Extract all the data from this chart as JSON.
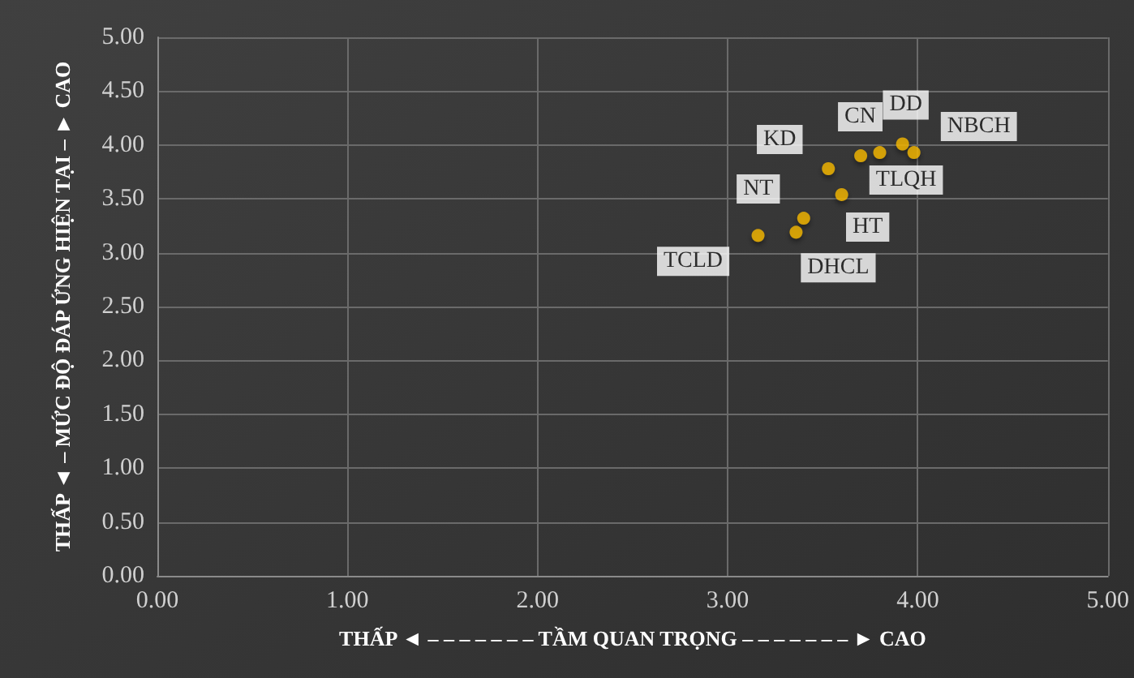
{
  "chart_data": {
    "type": "scatter",
    "xlabel": "THẤP ◄ – – – – – – – TẦM QUAN TRỌNG – – – – – – – ► CAO",
    "ylabel": "THẤP ◄ – MỨC ĐỘ ĐÁP ỨNG HIỆN TẠI – ► CAO",
    "series": [
      {
        "name": "DD",
        "color": "#f5b800",
        "x": [
          3.92
        ],
        "values": [
          4.01
        ]
      },
      {
        "name": "NBCH",
        "color": "#f5b800",
        "x": [
          3.98
        ],
        "values": [
          3.93
        ]
      },
      {
        "name": "CN",
        "color": "#f5b800",
        "x": [
          3.8
        ],
        "values": [
          3.93
        ]
      },
      {
        "name": "TLQH",
        "color": "#f5b800",
        "x": [
          3.7
        ],
        "values": [
          3.9
        ]
      },
      {
        "name": "KD",
        "color": "#f5b800",
        "x": [
          3.53
        ],
        "values": [
          3.78
        ]
      },
      {
        "name": "HT",
        "color": "#f5b800",
        "x": [
          3.6
        ],
        "values": [
          3.54
        ]
      },
      {
        "name": "NT",
        "color": "#f5b800",
        "x": [
          3.4
        ],
        "values": [
          3.32
        ]
      },
      {
        "name": "DHCL",
        "color": "#f5b800",
        "x": [
          3.36
        ],
        "values": [
          3.19
        ]
      },
      {
        "name": "TCLD",
        "color": "#f5b800",
        "x": [
          3.16
        ],
        "values": [
          3.16
        ]
      }
    ],
    "xlim": [
      0,
      5
    ],
    "xticks": [
      {
        "value": 0,
        "label": "0.00"
      },
      {
        "value": 1,
        "label": "1.00"
      },
      {
        "value": 2,
        "label": "2.00"
      },
      {
        "value": 3,
        "label": "3.00"
      },
      {
        "value": 4,
        "label": "4.00"
      },
      {
        "value": 5,
        "label": "5.00"
      }
    ],
    "ylim": [
      0,
      5
    ],
    "yticks": [
      {
        "value": 0,
        "label": "0.00"
      },
      {
        "value": 0.5,
        "label": "0.50"
      },
      {
        "value": 1,
        "label": "1.00"
      },
      {
        "value": 1.5,
        "label": "1.50"
      },
      {
        "value": 2,
        "label": "2.00"
      },
      {
        "value": 2.5,
        "label": "2.50"
      },
      {
        "value": 3,
        "label": "3.00"
      },
      {
        "value": 3.5,
        "label": "3.50"
      },
      {
        "value": 4,
        "label": "4.00"
      },
      {
        "value": 4.5,
        "label": "4.50"
      },
      {
        "value": 5,
        "label": "5.00"
      }
    ],
    "grid": true,
    "legend": false,
    "marker": "circle"
  }
}
